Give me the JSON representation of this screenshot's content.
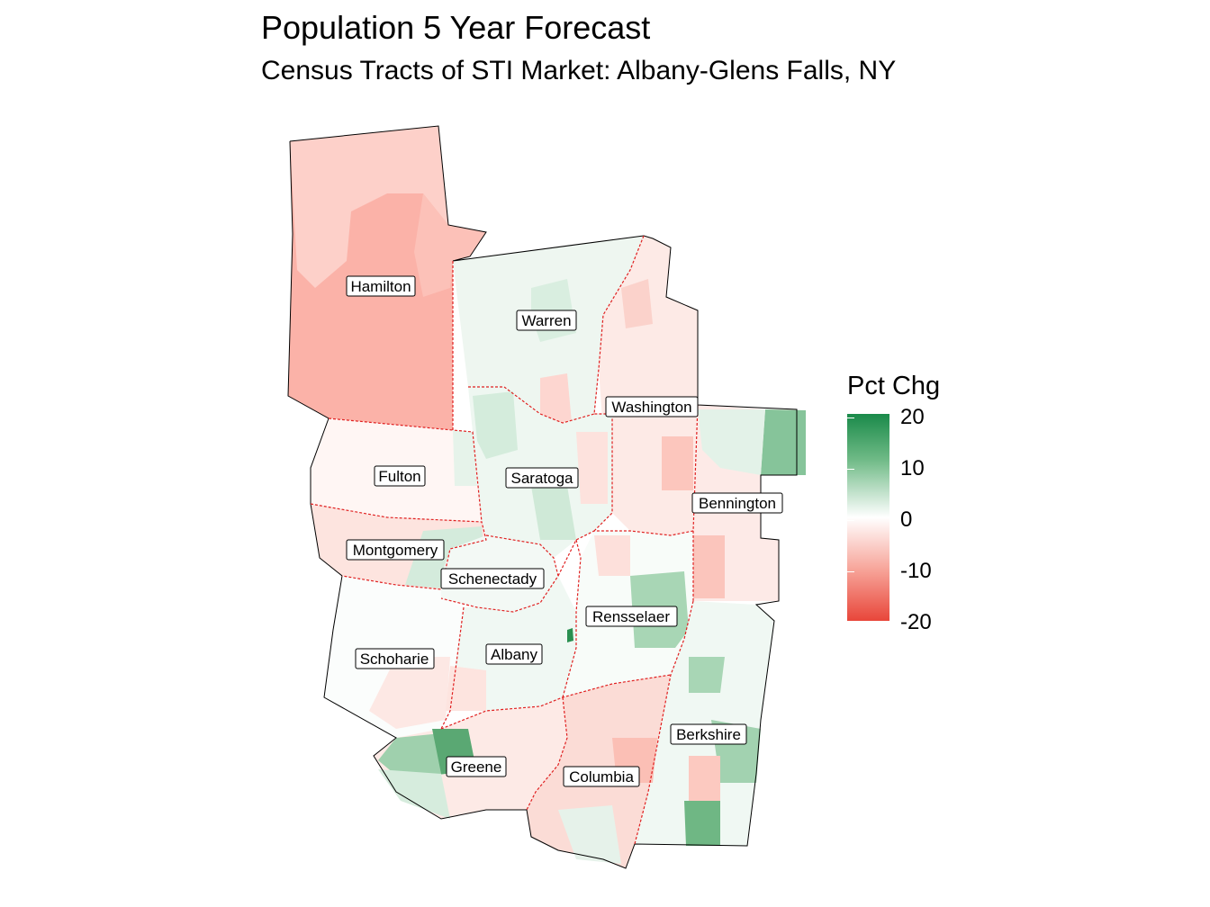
{
  "title": "Population 5 Year Forecast",
  "subtitle": "Census Tracts of STI Market: Albany-Glens Falls, NY",
  "legend": {
    "title": "Pct Chg",
    "ticks": [
      "20",
      "10",
      "0",
      "-10",
      "-20"
    ],
    "colors": {
      "high": "#1a8a4a",
      "mid": "#ffffff",
      "low": "#e8463a"
    }
  },
  "counties": [
    {
      "name": "Hamilton",
      "pct_chg": -8
    },
    {
      "name": "Warren",
      "pct_chg": 2
    },
    {
      "name": "Washington",
      "pct_chg": -1
    },
    {
      "name": "Fulton",
      "pct_chg": -1
    },
    {
      "name": "Saratoga",
      "pct_chg": 3
    },
    {
      "name": "Bennington",
      "pct_chg": -2
    },
    {
      "name": "Montgomery",
      "pct_chg": -1
    },
    {
      "name": "Schenectady",
      "pct_chg": 1
    },
    {
      "name": "Rensselaer",
      "pct_chg": 1
    },
    {
      "name": "Schoharie",
      "pct_chg": -1
    },
    {
      "name": "Albany",
      "pct_chg": 1
    },
    {
      "name": "Berkshire",
      "pct_chg": 3
    },
    {
      "name": "Greene",
      "pct_chg": 1
    },
    {
      "name": "Columbia",
      "pct_chg": -2
    }
  ]
}
